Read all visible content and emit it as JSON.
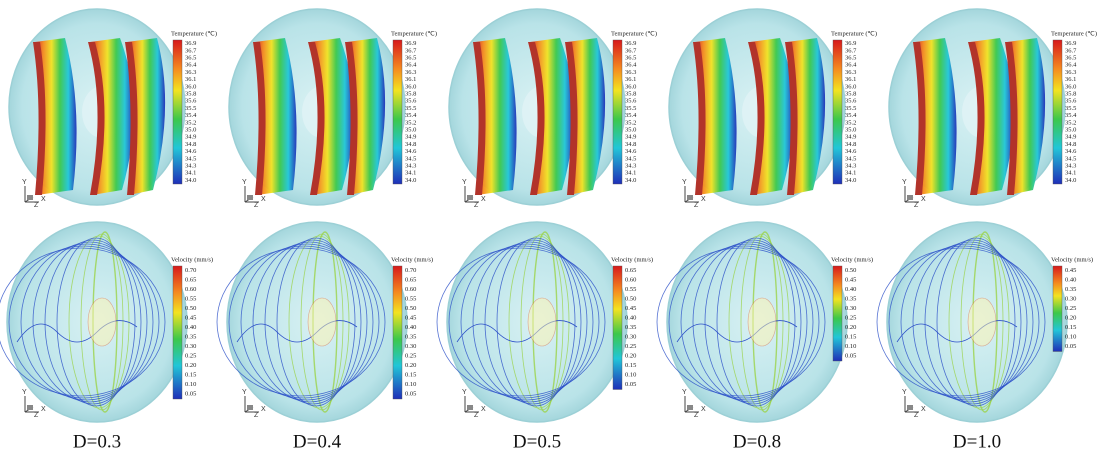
{
  "temperature_legend": {
    "title": "Temperature (℃)",
    "ticks": [
      "36.9",
      "36.7",
      "36.5",
      "36.4",
      "36.3",
      "36.1",
      "36.0",
      "35.8",
      "35.6",
      "35.5",
      "35.4",
      "35.2",
      "35.0",
      "34.9",
      "34.8",
      "34.6",
      "34.5",
      "34.3",
      "34.1",
      "34.0"
    ]
  },
  "triad": {
    "y": "Y",
    "z": "Z",
    "x": "X"
  },
  "panels": [
    {
      "label": "D=0.3",
      "velocity_legend": {
        "title": "Velocity (mm/s)",
        "ticks": [
          "0.70",
          "0.65",
          "0.60",
          "0.55",
          "0.50",
          "0.45",
          "0.40",
          "0.35",
          "0.30",
          "0.25",
          "0.20",
          "0.15",
          "0.10",
          "0.05"
        ]
      }
    },
    {
      "label": "D=0.4",
      "velocity_legend": {
        "title": "Velocity (mm/s)",
        "ticks": [
          "0.70",
          "0.65",
          "0.60",
          "0.55",
          "0.50",
          "0.45",
          "0.40",
          "0.35",
          "0.30",
          "0.25",
          "0.20",
          "0.15",
          "0.10",
          "0.05"
        ]
      }
    },
    {
      "label": "D=0.5",
      "velocity_legend": {
        "title": "Velocity (mm/s)",
        "ticks": [
          "0.65",
          "0.60",
          "0.55",
          "0.50",
          "0.45",
          "0.40",
          "0.35",
          "0.30",
          "0.25",
          "0.20",
          "0.15",
          "0.10",
          "0.05"
        ]
      }
    },
    {
      "label": "D=0.8",
      "velocity_legend": {
        "title": "Velocity (mm/s)",
        "ticks": [
          "0.50",
          "0.45",
          "0.40",
          "0.35",
          "0.30",
          "0.25",
          "0.20",
          "0.15",
          "0.10",
          "0.05"
        ]
      }
    },
    {
      "label": "D=1.0",
      "velocity_legend": {
        "title": "Velocity (mm/s)",
        "ticks": [
          "0.45",
          "0.40",
          "0.35",
          "0.30",
          "0.25",
          "0.20",
          "0.15",
          "0.10",
          "0.05"
        ]
      }
    }
  ]
}
